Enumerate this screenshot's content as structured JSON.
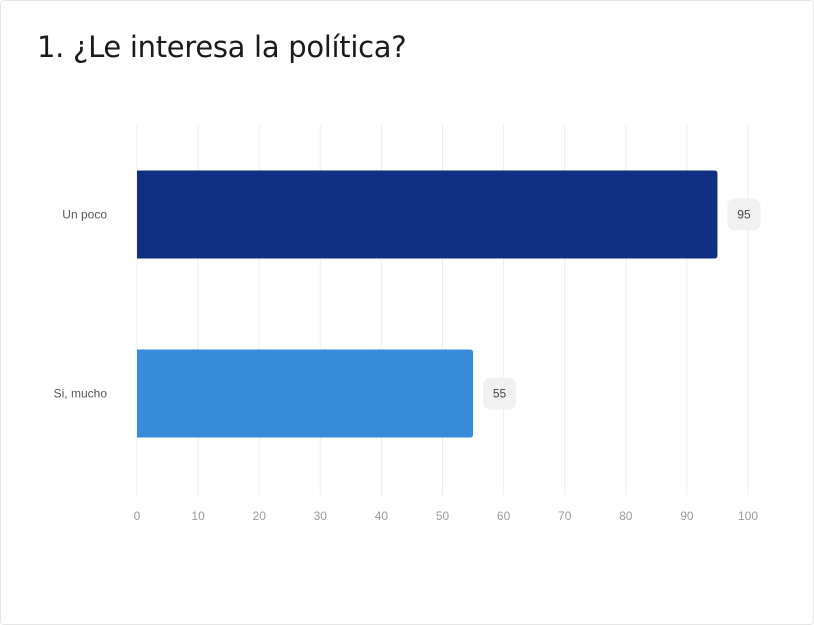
{
  "chart_data": {
    "type": "bar",
    "orientation": "horizontal",
    "title": "1. ¿Le interesa la política?",
    "categories": [
      "Un poco",
      "Si, mucho"
    ],
    "values": [
      95,
      55
    ],
    "colors": [
      "#112f80",
      "#378bd8"
    ],
    "xlim": [
      0,
      100
    ],
    "xticks": [
      0,
      10,
      20,
      30,
      40,
      50,
      60,
      70,
      80,
      90,
      100
    ],
    "grid": true,
    "xlabel": "",
    "ylabel": ""
  }
}
